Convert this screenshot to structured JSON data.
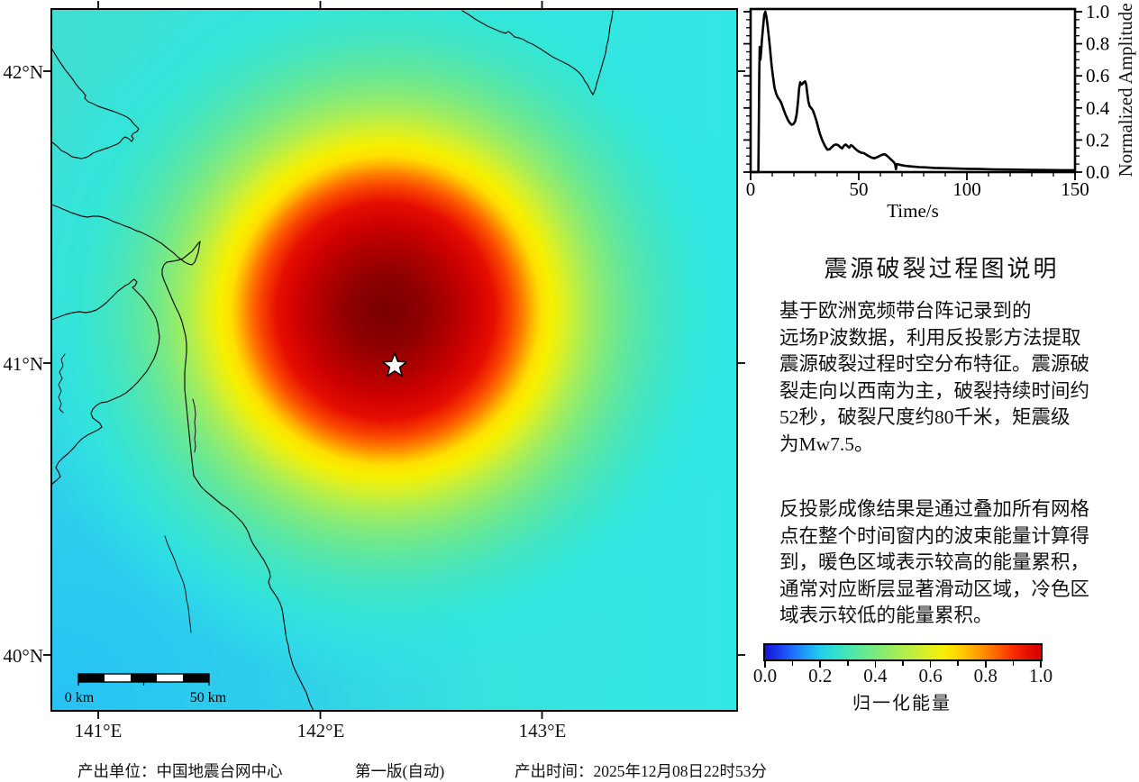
{
  "map": {
    "lat_labels": [
      "42°N",
      "41°N",
      "40°N"
    ],
    "lon_labels": [
      "141°E",
      "142°E",
      "143°E"
    ],
    "scalebar": {
      "start_label": "0 km",
      "end_label": "50 km"
    },
    "epicenter_marker": "white-star"
  },
  "time_plot": {
    "xlabel": "Time/s",
    "ylabel": "Normalized Amplitude",
    "x_tick_labels": [
      "0",
      "50",
      "100",
      "150"
    ],
    "y_tick_labels": [
      "0.0",
      "0.2",
      "0.4",
      "0.6",
      "0.8",
      "1.0"
    ]
  },
  "description": {
    "title": "震源破裂过程图说明",
    "paragraph1_lines": [
      "基于欧洲宽频带台阵记录到的",
      "远场P波数据，利用反投影方法提取",
      "震源破裂过程时空分布特征。震源破",
      "裂走向以西南为主，破裂持续时间约",
      "52秒，破裂尺度约80千米，矩震级",
      "为Mw7.5。"
    ],
    "paragraph2_lines": [
      "反投影成像结果是通过叠加所有网格",
      "点在整个时间窗内的波束能量计算得",
      "到，暖色区域表示较高的能量累积，",
      "通常对应断层显著滑动区域，冷色区",
      "域表示较低的能量累积。"
    ]
  },
  "colorbar": {
    "label": "归一化能量",
    "tick_labels": [
      "0.0",
      "0.2",
      "0.4",
      "0.6",
      "0.8",
      "1.0"
    ],
    "gradient_stops": [
      [
        0.0,
        "#1414D7"
      ],
      [
        0.05,
        "#1A3CF0"
      ],
      [
        0.1,
        "#1E6EFC"
      ],
      [
        0.15,
        "#1FA0FA"
      ],
      [
        0.2,
        "#22CCEE"
      ],
      [
        0.25,
        "#2FDFD2"
      ],
      [
        0.3,
        "#45E6B2"
      ],
      [
        0.35,
        "#5FE996"
      ],
      [
        0.4,
        "#79EA7F"
      ],
      [
        0.45,
        "#93EC66"
      ],
      [
        0.5,
        "#ADEE4E"
      ],
      [
        0.55,
        "#C7EF36"
      ],
      [
        0.6,
        "#E2F01D"
      ],
      [
        0.65,
        "#F8EC05"
      ],
      [
        0.7,
        "#FFD400"
      ],
      [
        0.75,
        "#FFAE00"
      ],
      [
        0.8,
        "#FF8700"
      ],
      [
        0.85,
        "#FF5A00"
      ],
      [
        0.9,
        "#FB2C00"
      ],
      [
        0.95,
        "#E81000"
      ],
      [
        1.0,
        "#D40000"
      ]
    ]
  },
  "footer": {
    "producer": "产出单位：中国地震台网中心",
    "version": "第一版(自动)",
    "time": "产出时间：2025年12月08日22时53分"
  },
  "chart_data": [
    {
      "type": "heatmap",
      "title": "back-projection normalized energy map",
      "x_tick_labels": [
        "141°E",
        "142°E",
        "143°E"
      ],
      "y_tick_labels": [
        "40°N",
        "41°N",
        "42°N"
      ],
      "value_range": [
        0.0,
        1.0
      ],
      "value_label": "归一化能量",
      "hotspot_center_fraction_xy": [
        0.488,
        0.43
      ],
      "epicenter_star_fraction_xy": [
        0.501,
        0.508
      ],
      "scalebar_km": 50,
      "colormap": "blue-cyan-green-yellow-orange-red"
    },
    {
      "type": "line",
      "title": "source time function",
      "xlabel": "Time/s",
      "ylabel": "Normalized Amplitude",
      "xlim": [
        0,
        150
      ],
      "ylim": [
        0.0,
        1.0
      ],
      "x_ticks": [
        0,
        50,
        100,
        150
      ],
      "y_ticks": [
        0.0,
        0.2,
        0.4,
        0.6,
        0.8,
        1.0
      ],
      "points": [
        [
          0,
          0
        ],
        [
          3.6,
          0
        ],
        [
          3.8,
          0.3
        ],
        [
          4.0,
          0.62
        ],
        [
          4.2,
          0.78
        ],
        [
          4.5,
          0.7
        ],
        [
          4.8,
          0.74
        ],
        [
          5.2,
          0.82
        ],
        [
          5.8,
          0.91
        ],
        [
          6.3,
          0.98
        ],
        [
          6.8,
          1.0
        ],
        [
          7.3,
          0.97
        ],
        [
          7.8,
          0.92
        ],
        [
          8.3,
          0.86
        ],
        [
          8.9,
          0.78
        ],
        [
          9.6,
          0.68
        ],
        [
          10.3,
          0.6
        ],
        [
          11.0,
          0.53
        ],
        [
          11.8,
          0.49
        ],
        [
          12.6,
          0.465
        ],
        [
          13.4,
          0.45
        ],
        [
          14.2,
          0.43
        ],
        [
          15.0,
          0.4
        ],
        [
          15.8,
          0.37
        ],
        [
          16.6,
          0.345
        ],
        [
          17.4,
          0.32
        ],
        [
          18.2,
          0.305
        ],
        [
          19.0,
          0.295
        ],
        [
          19.8,
          0.3
        ],
        [
          20.6,
          0.315
        ],
        [
          21.3,
          0.36
        ],
        [
          21.9,
          0.44
        ],
        [
          22.4,
          0.52
        ],
        [
          22.9,
          0.56
        ],
        [
          23.4,
          0.545
        ],
        [
          24.0,
          0.55
        ],
        [
          24.6,
          0.56
        ],
        [
          25.2,
          0.565
        ],
        [
          25.7,
          0.545
        ],
        [
          26.2,
          0.49
        ],
        [
          26.7,
          0.44
        ],
        [
          27.3,
          0.41
        ],
        [
          28.0,
          0.4
        ],
        [
          28.8,
          0.385
        ],
        [
          29.6,
          0.355
        ],
        [
          30.4,
          0.32
        ],
        [
          31.2,
          0.28
        ],
        [
          32.0,
          0.24
        ],
        [
          32.8,
          0.21
        ],
        [
          33.6,
          0.185
        ],
        [
          34.5,
          0.16
        ],
        [
          35.5,
          0.14
        ],
        [
          36.5,
          0.142
        ],
        [
          37.5,
          0.155
        ],
        [
          38.5,
          0.168
        ],
        [
          39.5,
          0.172
        ],
        [
          40.5,
          0.168
        ],
        [
          41.5,
          0.155
        ],
        [
          42.3,
          0.148
        ],
        [
          43.2,
          0.165
        ],
        [
          44.0,
          0.172
        ],
        [
          44.8,
          0.162
        ],
        [
          45.6,
          0.152
        ],
        [
          46.4,
          0.168
        ],
        [
          47.2,
          0.162
        ],
        [
          48.0,
          0.15
        ],
        [
          49.0,
          0.138
        ],
        [
          50.0,
          0.128
        ],
        [
          51.2,
          0.12
        ],
        [
          52.4,
          0.118
        ],
        [
          53.6,
          0.108
        ],
        [
          54.8,
          0.098
        ],
        [
          56.0,
          0.09
        ],
        [
          57.2,
          0.086
        ],
        [
          58.4,
          0.092
        ],
        [
          59.6,
          0.1
        ],
        [
          60.8,
          0.108
        ],
        [
          62.0,
          0.112
        ],
        [
          63.2,
          0.1
        ],
        [
          64.4,
          0.085
        ],
        [
          65.4,
          0.072
        ],
        [
          66.2,
          0.062
        ],
        [
          66.8,
          0.05
        ],
        [
          67.2,
          0.018
        ],
        [
          67.6,
          0.05
        ],
        [
          68.4,
          0.048
        ],
        [
          69.5,
          0.044
        ],
        [
          71,
          0.04
        ],
        [
          73,
          0.037
        ],
        [
          75,
          0.034
        ],
        [
          78,
          0.031
        ],
        [
          81,
          0.029
        ],
        [
          85,
          0.026
        ],
        [
          90,
          0.024
        ],
        [
          95,
          0.022
        ],
        [
          100,
          0.02
        ],
        [
          106,
          0.019
        ],
        [
          112,
          0.017
        ],
        [
          120,
          0.016
        ],
        [
          128,
          0.014
        ],
        [
          136,
          0.013
        ],
        [
          144,
          0.012
        ],
        [
          150,
          0.012
        ]
      ]
    }
  ]
}
